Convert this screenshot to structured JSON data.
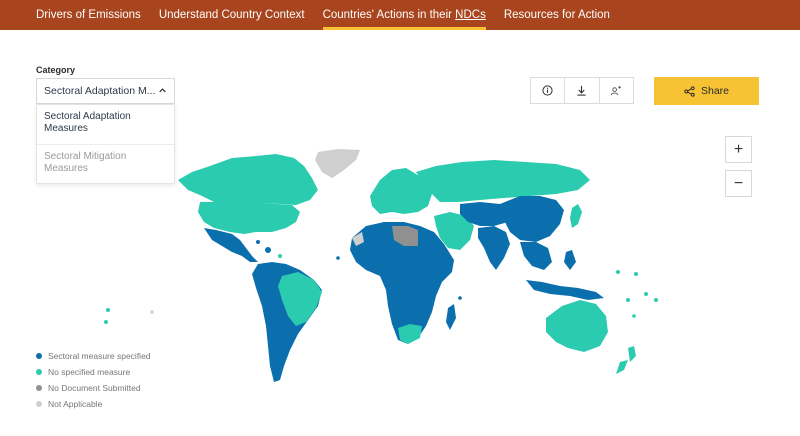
{
  "nav": {
    "items": [
      {
        "label": "Drivers of Emissions"
      },
      {
        "label": "Understand Country Context"
      },
      {
        "label_pre": "Countries' Actions in their ",
        "label_u": "NDCs"
      },
      {
        "label": "Resources for Action"
      }
    ]
  },
  "filter": {
    "label": "Category",
    "selected": "Sectoral Adaptation M...",
    "options": [
      {
        "line1": "Sectoral Adaptation",
        "line2": "Measures"
      },
      {
        "line1": "Sectoral Mitigation",
        "line2": "Measures"
      }
    ]
  },
  "toolbar": {
    "icons": [
      "info-icon",
      "download-icon",
      "add-user-icon"
    ],
    "share_label": "Share"
  },
  "zoom": {
    "in": "+",
    "out": "−"
  },
  "legend": {
    "items": [
      {
        "label": "Sectoral measure specified",
        "color": "#0b6fae"
      },
      {
        "label": "No specified measure",
        "color": "#2bcbb0"
      },
      {
        "label": "No Document Submitted",
        "color": "#909090"
      },
      {
        "label": "Not Applicable",
        "color": "#cfcfcf"
      }
    ]
  },
  "colors": {
    "nav_bg": "#a8441e",
    "accent": "#f7c233",
    "specified": "#0b6fae",
    "none_specified": "#2bcbb0",
    "no_document": "#909090",
    "not_applicable": "#cfcfcf"
  }
}
